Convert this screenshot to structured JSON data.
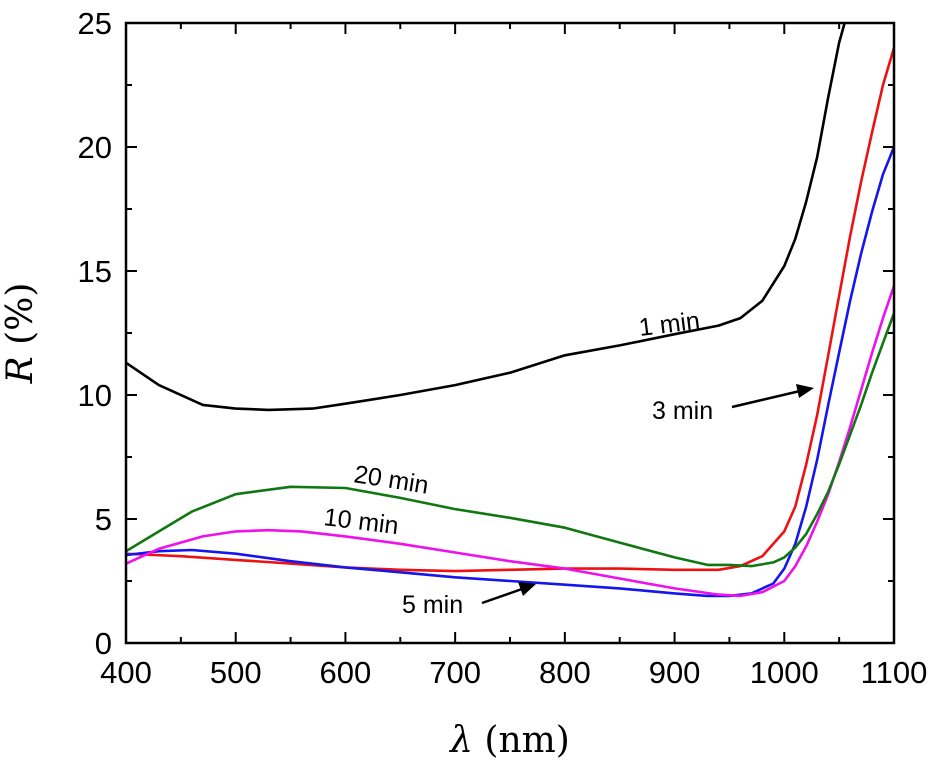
{
  "chart_data": {
    "type": "line",
    "xlabel_var": "λ",
    "xlabel_unit": " (nm)",
    "ylabel_var": "R",
    "ylabel_unit": " (%)",
    "xlim": [
      400,
      1100
    ],
    "ylim": [
      0,
      25
    ],
    "xticks": [
      "400",
      "500",
      "600",
      "700",
      "800",
      "900",
      "1000",
      "1100"
    ],
    "yticks": [
      "0",
      "5",
      "10",
      "15",
      "20",
      "25"
    ],
    "colors": {
      "black": "#000000",
      "red": "#ee1111",
      "blue": "#1515ee",
      "magenta": "#ee11ee",
      "green": "#117711"
    },
    "series": [
      {
        "name": "1 min",
        "color": "#000000",
        "x": [
          400,
          430,
          470,
          500,
          530,
          570,
          600,
          650,
          700,
          750,
          800,
          850,
          900,
          940,
          960,
          980,
          1000,
          1010,
          1020,
          1030,
          1040,
          1050,
          1055
        ],
        "y": [
          11.3,
          10.4,
          9.6,
          9.45,
          9.4,
          9.45,
          9.65,
          10.0,
          10.4,
          10.9,
          11.6,
          12.0,
          12.45,
          12.8,
          13.1,
          13.8,
          15.2,
          16.3,
          17.8,
          19.6,
          22.0,
          24.2,
          25.0
        ]
      },
      {
        "name": "3 min",
        "color": "#ee1111",
        "x": [
          400,
          450,
          500,
          550,
          600,
          650,
          700,
          750,
          800,
          850,
          900,
          940,
          960,
          980,
          1000,
          1010,
          1020,
          1030,
          1040,
          1050,
          1060,
          1070,
          1080,
          1090,
          1100
        ],
        "y": [
          3.6,
          3.5,
          3.35,
          3.2,
          3.05,
          2.95,
          2.9,
          2.95,
          3.0,
          3.0,
          2.95,
          2.95,
          3.1,
          3.5,
          4.5,
          5.5,
          7.2,
          9.2,
          11.6,
          14.0,
          16.4,
          18.6,
          20.6,
          22.5,
          24.0
        ]
      },
      {
        "name": "5 min",
        "color": "#1515ee",
        "x": [
          400,
          430,
          460,
          500,
          550,
          600,
          650,
          700,
          750,
          800,
          850,
          900,
          930,
          950,
          970,
          990,
          1000,
          1010,
          1020,
          1030,
          1040,
          1050,
          1060,
          1070,
          1080,
          1090,
          1100
        ],
        "y": [
          3.55,
          3.7,
          3.75,
          3.6,
          3.3,
          3.05,
          2.85,
          2.65,
          2.5,
          2.35,
          2.2,
          2.0,
          1.9,
          1.9,
          2.0,
          2.4,
          3.0,
          4.0,
          5.5,
          7.4,
          9.6,
          11.7,
          13.8,
          15.7,
          17.4,
          18.9,
          20.0
        ]
      },
      {
        "name": "10 min",
        "color": "#ee11ee",
        "x": [
          400,
          430,
          470,
          500,
          530,
          560,
          600,
          650,
          700,
          750,
          800,
          850,
          900,
          940,
          960,
          980,
          1000,
          1010,
          1020,
          1030,
          1040,
          1050,
          1060,
          1070,
          1080,
          1090,
          1100
        ],
        "y": [
          3.2,
          3.8,
          4.3,
          4.5,
          4.55,
          4.5,
          4.3,
          4.0,
          3.65,
          3.3,
          3.0,
          2.6,
          2.2,
          1.95,
          1.9,
          2.05,
          2.5,
          3.1,
          3.9,
          4.9,
          6.0,
          7.3,
          8.7,
          10.2,
          11.7,
          13.1,
          14.4
        ]
      },
      {
        "name": "20 min",
        "color": "#117711",
        "x": [
          400,
          430,
          460,
          500,
          550,
          600,
          650,
          700,
          750,
          800,
          850,
          900,
          930,
          950,
          970,
          990,
          1000,
          1010,
          1020,
          1030,
          1040,
          1050,
          1060,
          1070,
          1080,
          1090,
          1100
        ],
        "y": [
          3.7,
          4.5,
          5.3,
          6.0,
          6.3,
          6.25,
          5.85,
          5.4,
          5.05,
          4.65,
          4.05,
          3.45,
          3.15,
          3.15,
          3.1,
          3.25,
          3.45,
          3.85,
          4.4,
          5.2,
          6.1,
          7.2,
          8.4,
          9.6,
          10.9,
          12.1,
          13.3
        ]
      }
    ],
    "annotations": [
      {
        "text": "1 min"
      },
      {
        "text": "3 min"
      },
      {
        "text": "5 min"
      },
      {
        "text": "10 min"
      },
      {
        "text": "20 min"
      }
    ]
  }
}
